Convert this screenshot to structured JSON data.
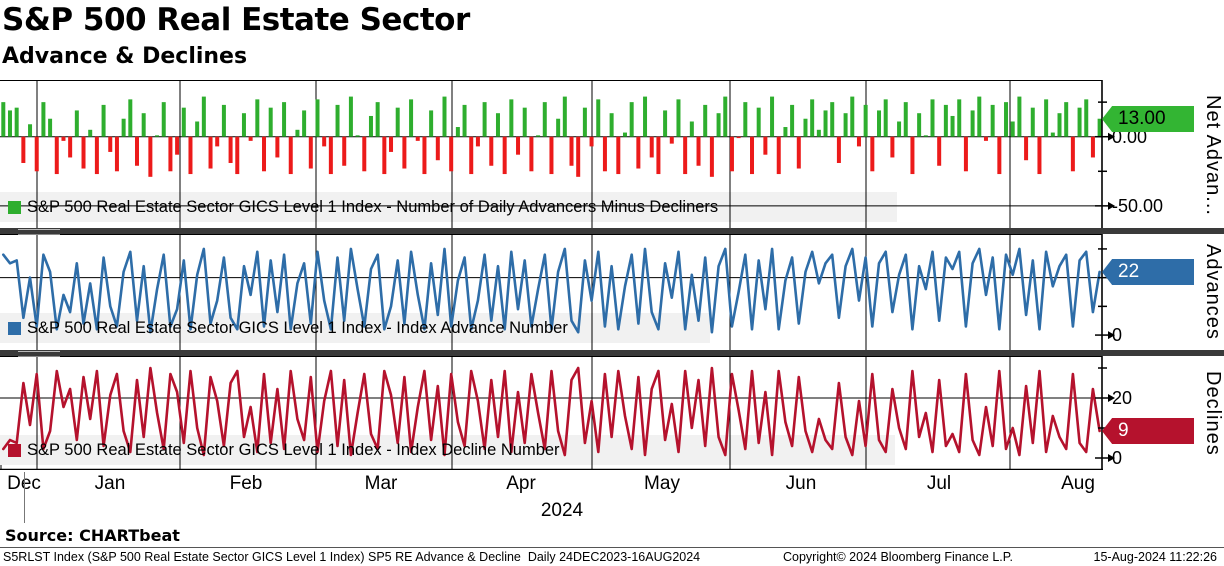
{
  "header": {
    "title": "S&P 500 Real Estate Sector",
    "subtitle": "Advance & Declines"
  },
  "source": {
    "label": "Source: CHARTbeat"
  },
  "footer": {
    "left": "S5RLST Index (S&P 500 Real Estate Sector GICS Level 1 Index) SP5 RE Advance & Decline  Daily 24DEC2023-16AUG2024",
    "center": "Copyright© 2024 Bloomberg Finance L.P.",
    "right": "15-Aug-2024 11:22:26"
  },
  "colors": {
    "bar_positive": "#2eae2e",
    "bar_negative": "#ec1a1a",
    "advance_line": "#2e6da8",
    "decline_line": "#b5122d",
    "tag_green": "#33b533",
    "tag_blue": "#2e6da8",
    "tag_red": "#b5122d",
    "legend_band": "#f1f1f1",
    "panel_separator": "#3a3a3a",
    "grid": "#000000"
  },
  "chart_data": {
    "type": "multi-panel",
    "x_axis": {
      "months": [
        "Dec",
        "Jan",
        "Feb",
        "Mar",
        "Apr",
        "May",
        "Jun",
        "Jul",
        "Aug"
      ],
      "year_label": "2024",
      "date_span": "24DEC2023-16AUG2024",
      "frequency": "Daily",
      "n_points": 165
    },
    "panels": [
      {
        "id": "net-advancers",
        "type": "bar",
        "legend": "S&P 500 Real Estate Sector GICS Level 1 Index - Number of Daily Advancers Minus Decliners",
        "axis_label": "Net Advan...",
        "last_label": "13.00",
        "last_value": 13,
        "ylim": [
          -66,
          41
        ],
        "gridlines": [
          0,
          -50
        ],
        "ticks": [
          {
            "v": 25,
            "label": ""
          },
          {
            "v": 0,
            "label": "0.00"
          },
          {
            "v": -25,
            "label": ""
          },
          {
            "v": -50,
            "label": "-50.00"
          }
        ],
        "pos_color": "#2eae2e",
        "neg_color": "#ec1a1a",
        "tag_bg": "#33b533",
        "tag_fg": "#000000",
        "values": [
          25,
          19,
          21,
          -19,
          9,
          -25,
          25,
          13,
          -27,
          -3,
          -15,
          19,
          -23,
          5,
          -27,
          23,
          -11,
          -25,
          13,
          27,
          -21,
          17,
          -29,
          1,
          25,
          -25,
          -13,
          21,
          -27,
          11,
          29,
          -23,
          -7,
          23,
          -19,
          -27,
          17,
          -3,
          27,
          -25,
          21,
          -15,
          25,
          -27,
          5,
          19,
          -23,
          27,
          -7,
          -27,
          23,
          -21,
          29,
          1,
          -25,
          15,
          25,
          -27,
          -11,
          21,
          -23,
          27,
          -3,
          -27,
          19,
          -17,
          29,
          -25,
          7,
          23,
          -27,
          -7,
          25,
          -21,
          17,
          -27,
          27,
          -13,
          21,
          -25,
          1,
          25,
          -27,
          13,
          29,
          -21,
          -29,
          21,
          -7,
          27,
          -25,
          17,
          -27,
          3,
          25,
          -23,
          29,
          -15,
          -27,
          19,
          -5,
          27,
          -27,
          11,
          -21,
          23,
          -29,
          17,
          29,
          -25,
          -1,
          25,
          -27,
          21,
          -13,
          29,
          -27,
          7,
          23,
          -23,
          13,
          27,
          5,
          19,
          25,
          -19,
          17,
          29,
          -7,
          23,
          -25,
          19,
          27,
          -15,
          11,
          25,
          -27,
          17,
          1,
          27,
          -21,
          23,
          15,
          27,
          -25,
          19,
          29,
          -3,
          23,
          -27,
          25,
          11,
          29,
          -17,
          21,
          -27,
          27,
          3,
          17,
          25,
          -25,
          21,
          27,
          -15,
          13
        ]
      },
      {
        "id": "advances",
        "type": "line",
        "legend": "S&P 500 Real Estate Sector GICS Level 1 Index - Index Advance Number",
        "axis_label": "Advances",
        "last_label": "22",
        "last_value": 22,
        "ylim": [
          -5.2,
          35.2
        ],
        "gridlines": [
          20
        ],
        "ticks": [
          {
            "v": 30,
            "label": ""
          },
          {
            "v": 20,
            "label": ""
          },
          {
            "v": 10,
            "label": ""
          },
          {
            "v": 0,
            "label": "0"
          }
        ],
        "color": "#2e6da8",
        "tag_bg": "#2e6da8",
        "tag_fg": "#ffffff",
        "values": [
          28,
          25,
          26,
          6,
          20,
          3,
          28,
          22,
          2,
          14,
          8,
          25,
          4,
          18,
          2,
          27,
          10,
          3,
          22,
          29,
          5,
          24,
          1,
          16,
          28,
          3,
          9,
          26,
          2,
          21,
          30,
          4,
          12,
          27,
          6,
          2,
          24,
          14,
          29,
          3,
          26,
          8,
          28,
          2,
          18,
          25,
          4,
          29,
          12,
          2,
          27,
          5,
          30,
          16,
          3,
          23,
          28,
          2,
          10,
          26,
          4,
          29,
          14,
          2,
          25,
          7,
          30,
          3,
          19,
          27,
          2,
          12,
          28,
          5,
          24,
          2,
          29,
          9,
          26,
          3,
          16,
          28,
          2,
          22,
          30,
          5,
          1,
          26,
          12,
          29,
          3,
          24,
          2,
          17,
          28,
          4,
          30,
          8,
          2,
          25,
          13,
          29,
          2,
          21,
          5,
          27,
          1,
          24,
          30,
          3,
          15,
          28,
          2,
          26,
          9,
          30,
          2,
          19,
          27,
          4,
          22,
          29,
          18,
          25,
          28,
          6,
          24,
          30,
          12,
          27,
          3,
          25,
          29,
          8,
          21,
          28,
          2,
          24,
          16,
          29,
          5,
          27,
          23,
          29,
          3,
          25,
          30,
          14,
          27,
          2,
          28,
          21,
          30,
          7,
          26,
          2,
          29,
          17,
          24,
          28,
          3,
          26,
          29,
          8,
          22
        ]
      },
      {
        "id": "declines",
        "type": "line",
        "legend": "S&P 500 Real Estate Sector GICS Level 1 Index - Index Decline Number",
        "axis_label": "Declines",
        "last_label": "9",
        "last_value": 9,
        "ylim": [
          -4,
          34
        ],
        "gridlines": [
          20
        ],
        "ticks": [
          {
            "v": 30,
            "label": ""
          },
          {
            "v": 20,
            "label": "20"
          },
          {
            "v": 10,
            "label": ""
          },
          {
            "v": 0,
            "label": "0"
          }
        ],
        "color": "#b5122d",
        "tag_bg": "#b5122d",
        "tag_fg": "#ffffff",
        "values": [
          3,
          6,
          5,
          25,
          11,
          28,
          3,
          9,
          29,
          17,
          23,
          6,
          27,
          13,
          29,
          4,
          21,
          28,
          9,
          2,
          26,
          7,
          30,
          15,
          3,
          28,
          22,
          5,
          29,
          10,
          1,
          27,
          19,
          4,
          25,
          29,
          7,
          17,
          2,
          28,
          5,
          23,
          3,
          29,
          13,
          6,
          27,
          2,
          19,
          29,
          4,
          26,
          1,
          15,
          28,
          8,
          3,
          29,
          21,
          5,
          27,
          2,
          17,
          29,
          6,
          24,
          1,
          28,
          12,
          4,
          29,
          19,
          3,
          26,
          7,
          29,
          2,
          22,
          5,
          28,
          15,
          3,
          29,
          9,
          1,
          26,
          30,
          5,
          19,
          2,
          28,
          7,
          29,
          14,
          3,
          27,
          1,
          23,
          29,
          6,
          18,
          2,
          29,
          10,
          26,
          4,
          30,
          7,
          1,
          28,
          16,
          3,
          29,
          5,
          22,
          1,
          29,
          12,
          4,
          27,
          9,
          2,
          13,
          6,
          3,
          25,
          7,
          1,
          19,
          4,
          28,
          6,
          2,
          23,
          10,
          3,
          29,
          7,
          15,
          2,
          26,
          4,
          8,
          2,
          28,
          6,
          1,
          17,
          4,
          29,
          3,
          10,
          1,
          24,
          5,
          29,
          2,
          14,
          7,
          3,
          28,
          5,
          2,
          23,
          9
        ]
      }
    ]
  }
}
